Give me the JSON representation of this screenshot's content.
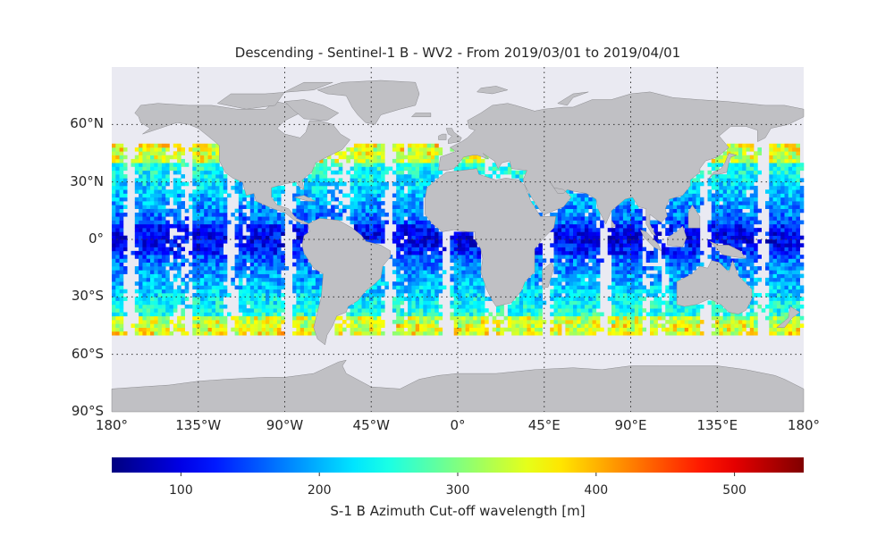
{
  "title": "Descending - Sentinel-1 B - WV2 - From 2019/03/01 to 2019/04/01",
  "map": {
    "lon_range": [
      -180,
      180
    ],
    "lat_range": [
      -90,
      90
    ],
    "ocean_color": "#eaeaf2",
    "land_color": "#c0c0c4",
    "gridlines": "dotted",
    "lat_ticks": [
      {
        "value": 60,
        "label": "60°N"
      },
      {
        "value": 30,
        "label": "30°N"
      },
      {
        "value": 0,
        "label": "0°"
      },
      {
        "value": -30,
        "label": "30°S"
      },
      {
        "value": -60,
        "label": "60°S"
      },
      {
        "value": -90,
        "label": "90°S"
      }
    ],
    "lon_ticks": [
      {
        "value": -180,
        "label": "180°"
      },
      {
        "value": -135,
        "label": "135°W"
      },
      {
        "value": -90,
        "label": "90°W"
      },
      {
        "value": -45,
        "label": "45°W"
      },
      {
        "value": 0,
        "label": "0°"
      },
      {
        "value": 45,
        "label": "45°E"
      },
      {
        "value": 90,
        "label": "90°E"
      },
      {
        "value": 135,
        "label": "135°E"
      },
      {
        "value": 180,
        "label": "180°"
      }
    ],
    "data_lat_band": [
      -50,
      50
    ]
  },
  "colorbar": {
    "label": "S-1 B Azimuth Cut-off wavelength [m]",
    "colormap": "jet",
    "range": [
      50,
      550
    ],
    "ticks": [
      100,
      200,
      300,
      400,
      500
    ]
  }
}
